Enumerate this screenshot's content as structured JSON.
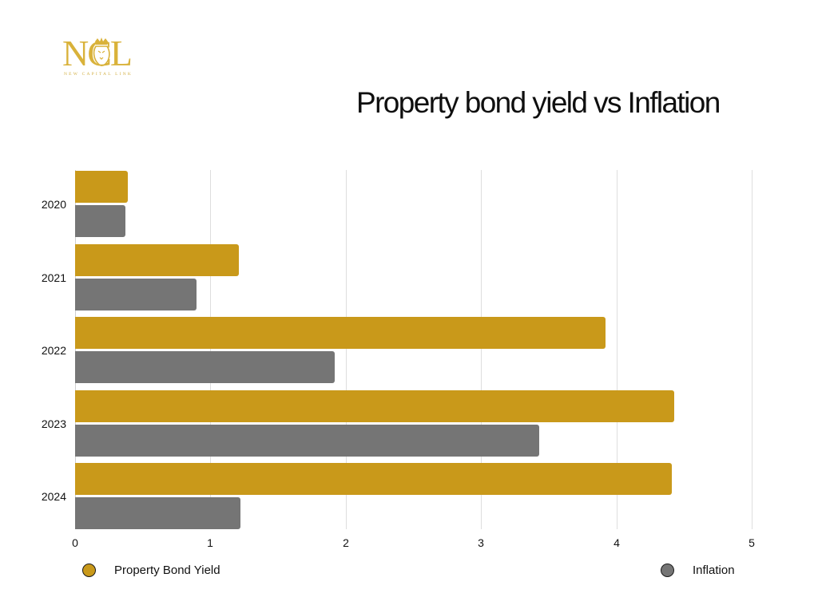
{
  "logo": {
    "letters": "NCL",
    "subtitle": "NEW CAPITAL LINK",
    "color": "#D9B23A"
  },
  "title": "Property bond yield vs Inflation",
  "legend": [
    {
      "label": "Property Bond Yield",
      "color": "#C9991A"
    },
    {
      "label": "Inflation",
      "color": "#757575"
    }
  ],
  "axis": {
    "x_ticks": [
      "0",
      "1",
      "2",
      "3",
      "4",
      "5"
    ],
    "y_categories": [
      "2020",
      "2021",
      "2022",
      "2023",
      "2024"
    ]
  },
  "chart_data": {
    "type": "bar",
    "orientation": "horizontal",
    "title": "Property bond yield vs Inflation",
    "categories": [
      "2020",
      "2021",
      "2022",
      "2023",
      "2024"
    ],
    "series": [
      {
        "name": "Property Bond Yield",
        "color": "#C9991A",
        "values": [
          0.39,
          1.21,
          3.92,
          4.43,
          4.41
        ]
      },
      {
        "name": "Inflation",
        "color": "#757575",
        "values": [
          0.37,
          0.9,
          1.92,
          3.43,
          1.22
        ]
      }
    ],
    "xlabel": "",
    "ylabel": "",
    "xlim": [
      0,
      5
    ],
    "x_ticks": [
      0,
      1,
      2,
      3,
      4,
      5
    ],
    "grid": "vertical",
    "legend_position": "bottom"
  }
}
